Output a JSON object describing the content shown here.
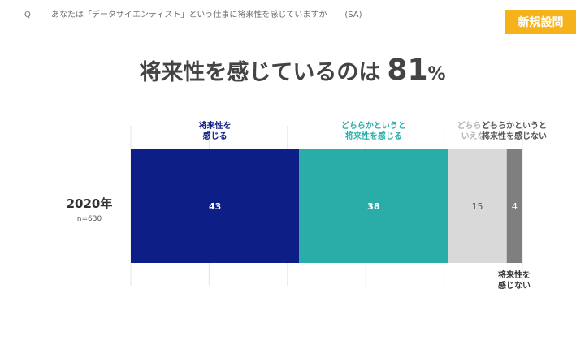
{
  "question": {
    "prefix": "Q.",
    "text": "あなたは「データサイエンティスト」という仕事に将来性を感じていますか",
    "type": "(SA)"
  },
  "badge": "新規設問",
  "headline": {
    "lead": "将来性を感じているのは",
    "number": "81",
    "unit": "%"
  },
  "chart_data": {
    "type": "bar",
    "orientation": "horizontal",
    "stacked": true,
    "categories": [
      "2020年"
    ],
    "category_note": [
      "n=630"
    ],
    "series": [
      {
        "name": "将来性を感じる",
        "values": [
          43
        ],
        "color": "#0d1e87",
        "label_color": "#0d1e87",
        "value_color": "#ffffff"
      },
      {
        "name": "どちらかというと将来性を感じる",
        "values": [
          38
        ],
        "color": "#2aada9",
        "label_color": "#2aada9",
        "value_color": "#ffffff"
      },
      {
        "name": "どちらともいえない",
        "values": [
          15
        ],
        "color": "#d9d9d9",
        "label_color": "#b5b5b5",
        "value_color": "#555555"
      },
      {
        "name": "どちらかというと将来性を感じない",
        "values": [
          4
        ],
        "color": "#7f7f7f",
        "label_color": "#555555",
        "value_color": "#ffffff"
      },
      {
        "name": "将来性を感じない",
        "values": [
          0
        ],
        "color": "#333333",
        "label_color": "#333333",
        "value_color": "#ffffff"
      }
    ],
    "xlim": [
      0,
      100
    ],
    "grid": true
  }
}
